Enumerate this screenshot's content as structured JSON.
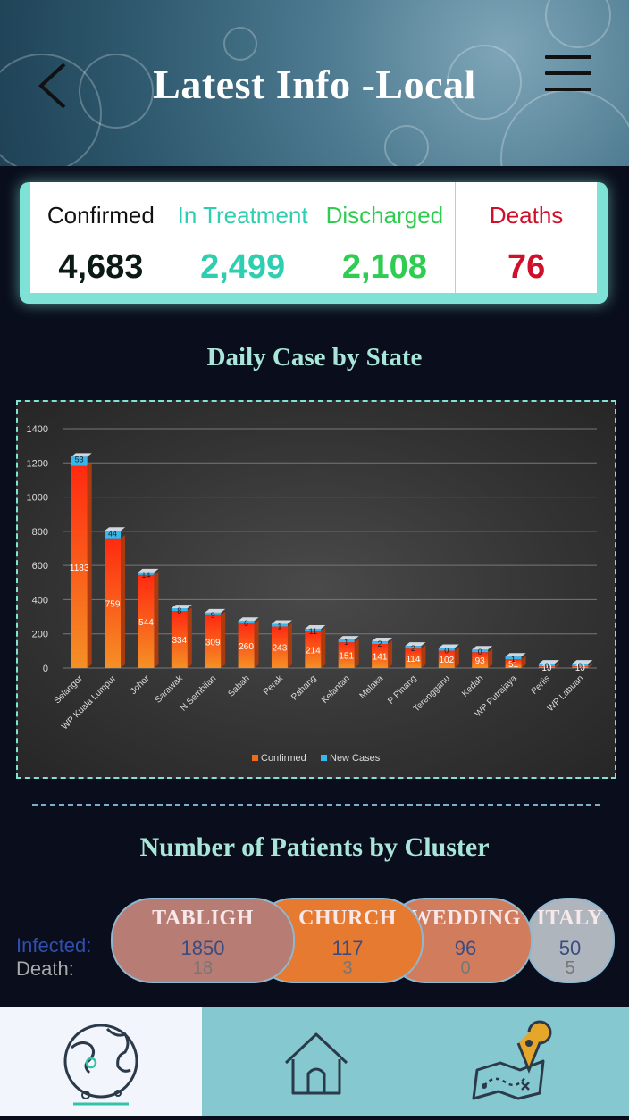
{
  "header": {
    "title": "Latest Info -Local"
  },
  "stats": [
    {
      "label": "Confirmed",
      "value": "4,683",
      "color": "#0b1a14"
    },
    {
      "label": "In Treatment",
      "value": "2,499",
      "color": "#2ecfb0"
    },
    {
      "label": "Discharged",
      "value": "2,108",
      "color": "#2ecc50"
    },
    {
      "label": "Deaths",
      "value": "76",
      "color": "#d0102a"
    }
  ],
  "chart_section": {
    "title": "Daily Case by State"
  },
  "chart_data": {
    "type": "bar",
    "categories": [
      "Selangor",
      "WP Kuala Lumpur",
      "Johor",
      "Sarawak",
      "N Sembilan",
      "Sabah",
      "Perak",
      "Pahang",
      "Kelantan",
      "Melaka",
      "P Pinang",
      "Terengganu",
      "Kedah",
      "WP Putrajaya",
      "Perlis",
      "WP Labuan"
    ],
    "series": [
      {
        "name": "Confirmed",
        "values": [
          1183,
          759,
          544,
          334,
          309,
          260,
          243,
          214,
          151,
          141,
          114,
          102,
          93,
          51,
          10,
          10
        ],
        "color": "#f06a1a"
      },
      {
        "name": "New Cases",
        "values": [
          53,
          44,
          14,
          8,
          9,
          6,
          1,
          11,
          1,
          2,
          2,
          0,
          0,
          1,
          0,
          0
        ],
        "color": "#35b8f0"
      }
    ],
    "yticks": [
      "0",
      "200",
      "400",
      "600",
      "800",
      "1000",
      "1200",
      "1400"
    ],
    "ylim": [
      0,
      1400
    ],
    "grid": true,
    "legend_position": "bottom-center"
  },
  "cluster_section": {
    "title": "Number of Patients by Cluster",
    "infected_label": "Infected:",
    "death_label": "Death:",
    "clusters": [
      {
        "name": "TABLIGH",
        "infected": "1850",
        "death": "18",
        "color": "#b77c73"
      },
      {
        "name": "CHURCH",
        "infected": "117",
        "death": "3",
        "color": "#e57a30"
      },
      {
        "name": "WEDDING",
        "infected": "96",
        "death": "0",
        "color": "#d07c5d"
      },
      {
        "name": "ITALY",
        "infected": "50",
        "death": "5",
        "color": "#aeb5bd"
      }
    ]
  },
  "nav": {
    "items": [
      {
        "icon": "globe-icon",
        "active": true
      },
      {
        "icon": "home-icon",
        "active": false
      },
      {
        "icon": "map-pin-icon",
        "active": false
      }
    ]
  }
}
